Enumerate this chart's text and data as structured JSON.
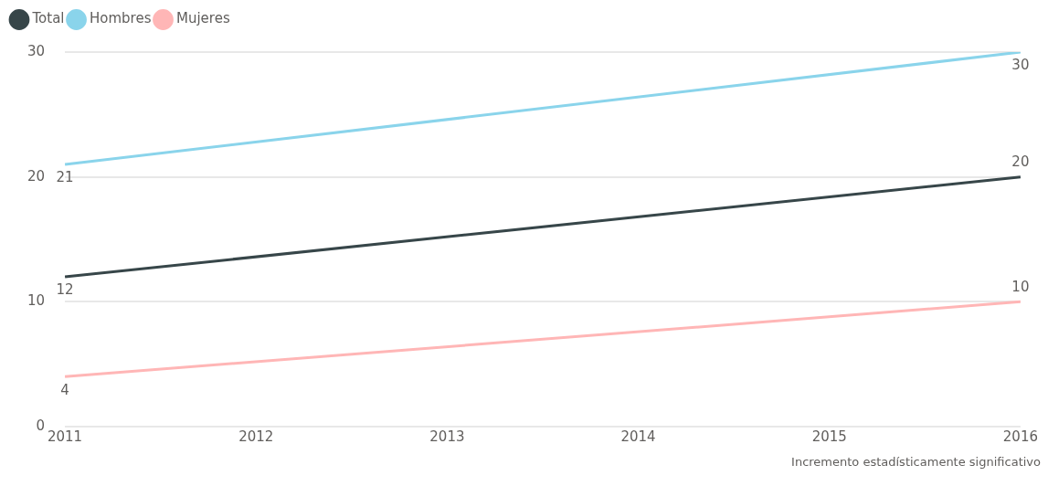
{
  "chart_data": {
    "type": "line",
    "x": [
      2011,
      2016
    ],
    "xlim": [
      2011,
      2016
    ],
    "xticks": [
      2011,
      2012,
      2013,
      2014,
      2015,
      2016
    ],
    "ylim": [
      0,
      30
    ],
    "yticks": [
      0,
      10,
      20,
      30
    ],
    "grid": "y",
    "legend": "top left",
    "marker": "none",
    "line_style": "solid",
    "data_labels": true,
    "series": [
      {
        "name": "Total",
        "color": "#374649",
        "values": [
          12,
          20
        ]
      },
      {
        "name": "Hombres",
        "color": "#8ad4eb",
        "values": [
          21,
          30
        ]
      },
      {
        "name": "Mujeres",
        "color": "#ffb6b6",
        "values": [
          4,
          10
        ]
      }
    ],
    "annotations": [
      "Incremento estadísticamente significativo"
    ]
  }
}
